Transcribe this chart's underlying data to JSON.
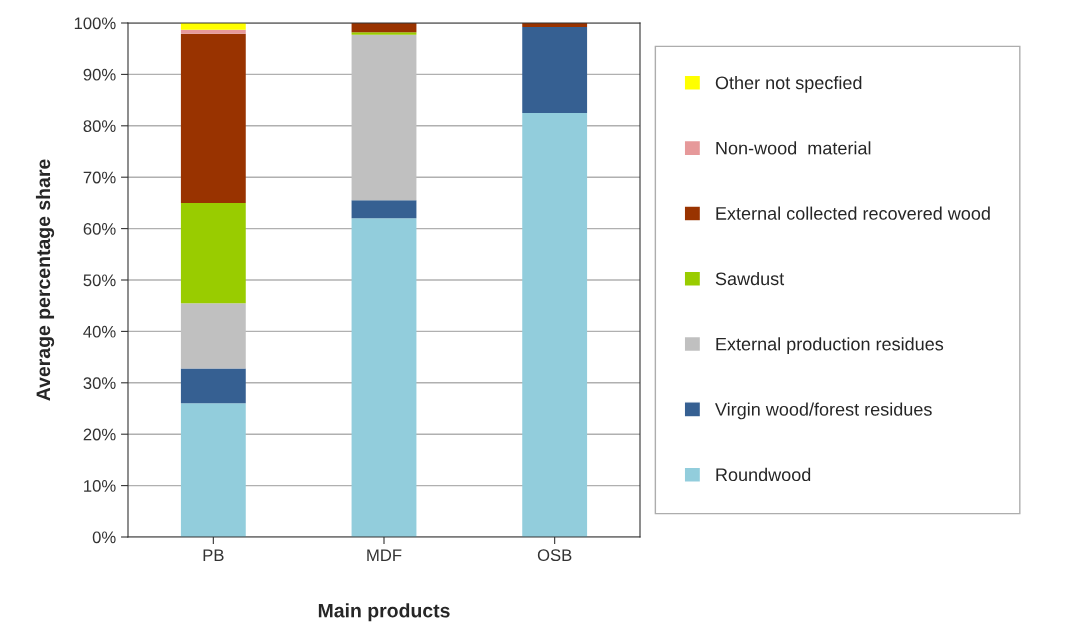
{
  "chart_data": {
    "type": "bar",
    "stacked": true,
    "xlabel": "Main products",
    "ylabel": "Average percentage share",
    "categories": [
      "PB",
      "MDF",
      "OSB"
    ],
    "series": [
      {
        "name": "Roundwood",
        "color": "#92cddc",
        "values": [
          26,
          62,
          82.5
        ]
      },
      {
        "name": "Virgin wood/forest residues",
        "color": "#366092",
        "values": [
          6.8,
          3.5,
          16.7
        ]
      },
      {
        "name": "External production residues",
        "color": "#c0c0c0",
        "values": [
          12.7,
          32.2,
          0
        ]
      },
      {
        "name": "Sawdust",
        "color": "#99cc00",
        "values": [
          19.5,
          0.5,
          0
        ]
      },
      {
        "name": "External collected recovered wood",
        "color": "#993300",
        "values": [
          32.9,
          1.8,
          0.8
        ]
      },
      {
        "name": "Non-wood  material",
        "color": "#e6999a",
        "values": [
          0.8,
          0,
          0
        ]
      },
      {
        "name": "Other not specfied",
        "color": "#ffff00",
        "values": [
          1.3,
          0,
          0
        ]
      }
    ],
    "ylim": [
      0,
      100
    ],
    "yticks": [
      {
        "value": 0,
        "label": "0%"
      },
      {
        "value": 10,
        "label": "10%"
      },
      {
        "value": 20,
        "label": "20%"
      },
      {
        "value": 30,
        "label": "30%"
      },
      {
        "value": 40,
        "label": "40%"
      },
      {
        "value": 50,
        "label": "50%"
      },
      {
        "value": 60,
        "label": "60%"
      },
      {
        "value": 70,
        "label": "70%"
      },
      {
        "value": 80,
        "label": "80%"
      },
      {
        "value": 90,
        "label": "90%"
      },
      {
        "value": 100,
        "label": "100%"
      }
    ],
    "grid": "y",
    "legend": "right"
  }
}
